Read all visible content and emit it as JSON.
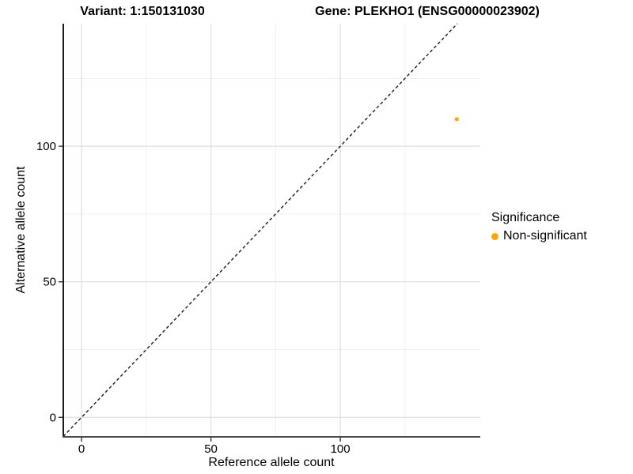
{
  "figure": {
    "variant_title": "Variant: 1:150131030",
    "gene_title": "Gene: PLEKHO1 (ENSG00000023902)"
  },
  "chart_data": {
    "type": "scatter",
    "title_left": "Variant: 1:150131030",
    "title_right": "Gene: PLEKHO1 (ENSG00000023902)",
    "xlabel": "Reference allele count",
    "ylabel": "Alternative allele count",
    "xlim": [
      -7.05,
      154.1
    ],
    "ylim": [
      -7.2,
      145.2
    ],
    "x_ticks": [
      0,
      50,
      100
    ],
    "y_ticks": [
      0,
      50,
      100
    ],
    "x_minor_grid": [
      25,
      75,
      125
    ],
    "y_minor_grid": [
      25,
      75,
      125
    ],
    "grid": true,
    "points": [
      {
        "x": 145,
        "y": 110,
        "series": "Non-significant"
      }
    ],
    "reference_line": {
      "kind": "identity",
      "style": "dashed",
      "color": "#1a1a1a"
    },
    "legend": {
      "title": "Significance",
      "position": "right",
      "items": [
        {
          "label": "Non-significant",
          "color": "#FFA500"
        }
      ]
    },
    "colors": {
      "point": "#FFA500",
      "grid_major": "#e2e2e2",
      "grid_minor": "#efefef",
      "axis_line_y": "#1a1a1a",
      "axis_line_x": "#4a4a4a",
      "tick": "#333333"
    }
  }
}
